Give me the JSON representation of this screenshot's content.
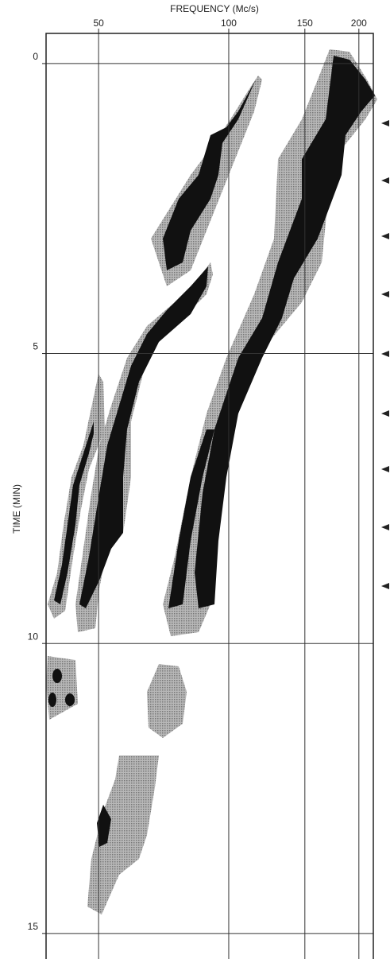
{
  "chart_data": {
    "type": "contour",
    "xlabel": "FREQUENCY (Mc/s)",
    "ylabel": "TIME (MIN)",
    "xscale": "log",
    "xlim": [
      37.8,
      216
    ],
    "xticks": [
      50,
      100,
      150,
      200
    ],
    "ylim": [
      -0.52,
      15.4
    ],
    "yticks": [
      0,
      5,
      10,
      15
    ],
    "grid": true,
    "y_inverted": true
  }
}
